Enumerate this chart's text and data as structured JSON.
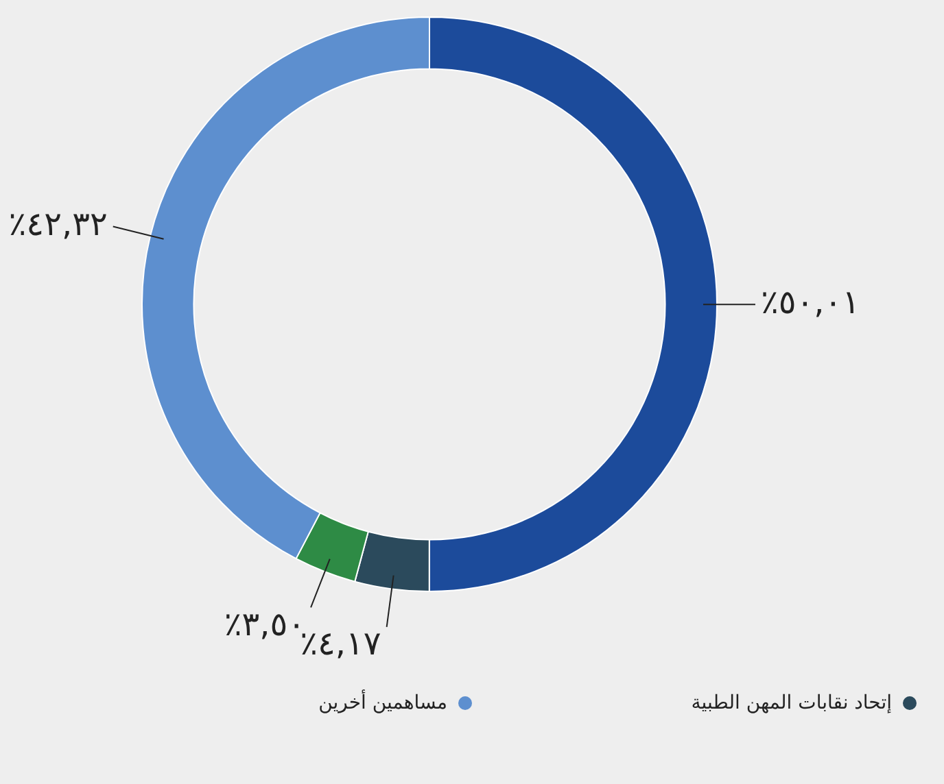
{
  "chart_data": {
    "type": "donut",
    "categories": [
      null,
      "إتحاد نقابات المهن الطبية",
      null,
      "مساهمين أخرين"
    ],
    "values": [
      50.01,
      4.17,
      3.5,
      42.32
    ],
    "colors": [
      "#1c4b9b",
      "#2b4a5c",
      "#2e8b45",
      "#5d8fcf"
    ],
    "value_labels": [
      "٪٥٠,٠١",
      "٪٤,١٧",
      "٪٣,٥٠",
      "٪٤٢,٣٢"
    ],
    "legend": "bottom"
  }
}
